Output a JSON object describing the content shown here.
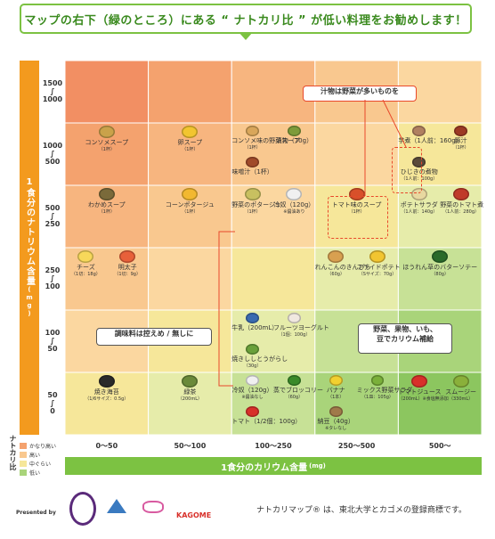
{
  "header": {
    "banner": "マップの右下（緑のところ）にある “ ナトカリ比 ” が低い料理をお勧めします！"
  },
  "chart_data": {
    "type": "table",
    "ylabel": "1食分のナトリウム含量",
    "ylabel_unit": "(mg)",
    "xlabel": "1食分のカリウム含量",
    "xlabel_unit": "(mg)",
    "y_ticks": [
      {
        "top": "1500",
        "bottom": "1000"
      },
      {
        "top": "1000",
        "bottom": "500"
      },
      {
        "top": "500",
        "bottom": "250"
      },
      {
        "top": "250",
        "bottom": "100"
      },
      {
        "top": "100",
        "bottom": "50"
      },
      {
        "top": "50",
        "bottom": "0"
      }
    ],
    "x_ticks": [
      "0〜50",
      "50〜100",
      "100〜250",
      "250〜500",
      "500〜"
    ],
    "legend_title": "ナトカリ比",
    "legend": [
      {
        "label": "かなり高い",
        "color": "#f4a26e"
      },
      {
        "label": "高い",
        "color": "#f9c88f"
      },
      {
        "label": "中ぐらい",
        "color": "#f6e79a"
      },
      {
        "label": "低い",
        "color": "#a9d47a"
      }
    ],
    "cell_colors": [
      [
        "#f28f63",
        "#f4a26e",
        "#f7b57f",
        "#f9c88f",
        "#fbd7a0"
      ],
      [
        "#f4a26e",
        "#f7b57f",
        "#f9c88f",
        "#fbd7a0",
        "#f6e79a"
      ],
      [
        "#f7b57f",
        "#f9c88f",
        "#fbd7a0",
        "#f6e79a",
        "#e6ecaa"
      ],
      [
        "#f9c88f",
        "#fbd7a0",
        "#f6e79a",
        "#e6ecaa",
        "#c7e196"
      ],
      [
        "#fbd7a0",
        "#f6e79a",
        "#e6ecaa",
        "#c7e196",
        "#a9d47a"
      ],
      [
        "#f6e79a",
        "#e6ecaa",
        "#c7e196",
        "#a9d47a",
        "#8cc65f"
      ]
    ],
    "foods": [
      {
        "name": "コンソメスープ",
        "note": "（1杯）",
        "x": 0,
        "y": 1,
        "color": "#c9a24a"
      },
      {
        "name": "卵スープ",
        "note": "（1杯）",
        "x": 1,
        "y": 1,
        "color": "#f2c530"
      },
      {
        "name": "コンソメ味の野菜スープ",
        "note": "（1杯）",
        "x": 2,
        "y": 1,
        "color": "#d9a65a"
      },
      {
        "name": "漬物（70g）",
        "note": "",
        "x": 2,
        "y": 1,
        "color": "#7d9b3a"
      },
      {
        "name": "味噌汁（1杯）",
        "note": "",
        "x": 2,
        "y": 1,
        "color": "#a04a2a"
      },
      {
        "name": "芋煮（1人前：160g）",
        "note": "",
        "x": 4,
        "y": 1,
        "color": "#b08060"
      },
      {
        "name": "豚汁",
        "note": "（1杯）",
        "x": 4,
        "y": 1,
        "color": "#9c3a24"
      },
      {
        "name": "ひじきの煮物",
        "note": "（1人前：100g）",
        "x": 4,
        "y": 1,
        "color": "#5a4a3a"
      },
      {
        "name": "わかめスープ",
        "note": "（1杯）",
        "x": 0,
        "y": 2,
        "color": "#7a6a3a"
      },
      {
        "name": "コーンポタージュ",
        "note": "（1杯）",
        "x": 1,
        "y": 2,
        "color": "#f2b830"
      },
      {
        "name": "野菜のポタージュ",
        "note": "（1杯）",
        "x": 2,
        "y": 2,
        "color": "#c8c060"
      },
      {
        "name": "冷奴（120g）",
        "note": "※醤油あり",
        "x": 2,
        "y": 2,
        "color": "#f0f0f0"
      },
      {
        "name": "トマト味のスープ",
        "note": "（1杯）",
        "x": 3,
        "y": 2,
        "color": "#d8502a"
      },
      {
        "name": "ポテトサラダ",
        "note": "（1人前：140g）",
        "x": 4,
        "y": 2,
        "color": "#e8d8a0"
      },
      {
        "name": "野菜のトマト煮",
        "note": "（1人前：280g）",
        "x": 4,
        "y": 2,
        "color": "#c03a2a"
      },
      {
        "name": "チーズ",
        "note": "（1切：18g）",
        "x": 0,
        "y": 3,
        "color": "#f7d85a"
      },
      {
        "name": "明太子",
        "note": "（1切：9g）",
        "x": 0,
        "y": 3,
        "color": "#e8603a"
      },
      {
        "name": "れんこんのきんぴら",
        "note": "（60g）",
        "x": 3,
        "y": 3,
        "color": "#d8a050"
      },
      {
        "name": "フライドポテト",
        "note": "（Sサイズ：70g）",
        "x": 3,
        "y": 3,
        "color": "#f2c530"
      },
      {
        "name": "ほうれん草のバターソテー",
        "note": "（80g）",
        "x": 4,
        "y": 3,
        "color": "#2a6a2a"
      },
      {
        "name": "牛乳（200mL）",
        "note": "",
        "x": 2,
        "y": 4,
        "color": "#3a6ab0"
      },
      {
        "name": "フルーツヨーグルト",
        "note": "（1個：100g）",
        "x": 2,
        "y": 4,
        "color": "#f0e8e0"
      },
      {
        "name": "焼きししとうがらし",
        "note": "（30g）",
        "x": 2,
        "y": 4,
        "color": "#6aa03a"
      },
      {
        "name": "焼き海苔",
        "note": "（1/6サイズ：0.5g）",
        "x": 0,
        "y": 5,
        "color": "#2a2a2a"
      },
      {
        "name": "緑茶",
        "note": "（200mL）",
        "x": 1,
        "y": 5,
        "color": "#6a8a3a"
      },
      {
        "name": "冷奴（120g）",
        "note": "※醤油なし",
        "x": 2,
        "y": 5,
        "color": "#f0f0f0"
      },
      {
        "name": "蒸でブロッコリー",
        "note": "（60g）",
        "x": 2,
        "y": 5,
        "color": "#3a8a2a"
      },
      {
        "name": "トマト（1/2個：100g）",
        "note": "",
        "x": 2,
        "y": 5,
        "color": "#d8302a"
      },
      {
        "name": "バナナ",
        "note": "（1本）",
        "x": 3,
        "y": 5,
        "color": "#f2d030"
      },
      {
        "name": "ミックス野菜サラダ",
        "note": "（1皿：105g）",
        "x": 3,
        "y": 5,
        "color": "#7ab03a"
      },
      {
        "name": "納豆（40g）",
        "note": "※タレなし",
        "x": 3,
        "y": 5,
        "color": "#a07a4a"
      },
      {
        "name": "トマトジュース",
        "note": "（200mL）※食塩無添加",
        "x": 4,
        "y": 5,
        "color": "#d8302a"
      },
      {
        "name": "スムージー",
        "note": "（330mL）",
        "x": 4,
        "y": 5,
        "color": "#8ab03a"
      }
    ]
  },
  "callouts": {
    "soup": "汁物は野菜が多いものを",
    "seasoning": "調味料は控えめ / 無しに",
    "potassium": "野菜、果物、いも、\n豆でカリウム補給"
  },
  "footer": {
    "presented_by": "Presented by",
    "brand": "KAGOME",
    "note": "ナトカリマップ® は、東北大学とカゴメの登録商標です。"
  }
}
